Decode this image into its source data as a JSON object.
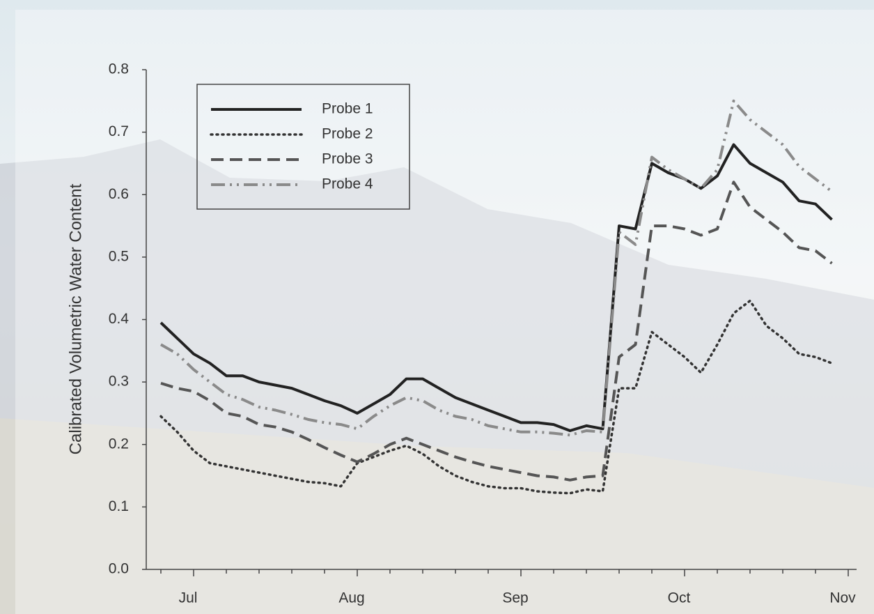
{
  "chart_data": {
    "type": "line",
    "ylabel": "Calibrated Volumetric Water Content",
    "categories": [
      null,
      null,
      "Jul",
      null,
      null,
      null,
      null,
      null,
      null,
      null,
      null,
      null,
      "Aug",
      null,
      null,
      null,
      null,
      null,
      null,
      null,
      null,
      null,
      "Sep",
      null,
      null,
      null,
      null,
      null,
      null,
      null,
      null,
      null,
      "Oct",
      null,
      null,
      null,
      null,
      null,
      null,
      null,
      null,
      null,
      "Nov"
    ],
    "series": [
      {
        "name": "Probe 1",
        "color": "#222222",
        "dash": "solid",
        "values": [
          0.395,
          0.37,
          0.345,
          0.33,
          0.31,
          0.31,
          0.3,
          0.295,
          0.29,
          0.28,
          0.27,
          0.262,
          0.25,
          0.265,
          0.28,
          0.305,
          0.305,
          0.29,
          0.275,
          0.265,
          0.255,
          0.245,
          0.235,
          0.235,
          0.232,
          0.222,
          0.23,
          0.225,
          0.55,
          0.545,
          0.65,
          0.635,
          0.625,
          0.61,
          0.63,
          0.68,
          0.65,
          0.635,
          0.62,
          0.59,
          0.585,
          0.56,
          null
        ]
      },
      {
        "name": "Probe 2",
        "color": "#333333",
        "dash": "dotted",
        "values": [
          0.245,
          0.22,
          0.19,
          0.17,
          0.165,
          0.16,
          0.155,
          0.15,
          0.145,
          0.14,
          0.138,
          0.133,
          0.17,
          0.18,
          0.19,
          0.198,
          0.185,
          0.165,
          0.15,
          0.14,
          0.133,
          0.13,
          0.13,
          0.125,
          0.123,
          0.122,
          0.128,
          0.125,
          0.29,
          0.29,
          0.38,
          0.36,
          0.34,
          0.315,
          0.36,
          0.41,
          0.43,
          0.39,
          0.37,
          0.345,
          0.34,
          0.33,
          null
        ]
      },
      {
        "name": "Probe 3",
        "color": "#555555",
        "dash": "dashed",
        "values": [
          0.298,
          0.29,
          0.285,
          0.27,
          0.25,
          0.245,
          0.232,
          0.228,
          0.22,
          0.208,
          0.195,
          0.183,
          0.172,
          0.185,
          0.2,
          0.21,
          0.2,
          0.19,
          0.18,
          0.172,
          0.165,
          0.16,
          0.155,
          0.15,
          0.148,
          0.143,
          0.148,
          0.15,
          0.34,
          0.36,
          0.55,
          0.55,
          0.545,
          0.535,
          0.545,
          0.62,
          0.58,
          0.56,
          0.54,
          0.515,
          0.51,
          0.49,
          null
        ]
      },
      {
        "name": "Probe 4",
        "color": "#8a8a8a",
        "dash": "dash-dot-dot",
        "values": [
          0.36,
          0.345,
          0.32,
          0.3,
          0.28,
          0.272,
          0.26,
          0.255,
          0.248,
          0.24,
          0.235,
          0.232,
          0.225,
          0.245,
          0.262,
          0.275,
          0.27,
          0.255,
          0.245,
          0.24,
          0.23,
          0.225,
          0.22,
          0.22,
          0.218,
          0.215,
          0.222,
          0.22,
          0.54,
          0.52,
          0.66,
          0.64,
          0.625,
          0.61,
          0.64,
          0.75,
          0.72,
          0.7,
          0.68,
          0.645,
          0.625,
          0.605,
          null
        ]
      }
    ],
    "ylim": [
      0,
      0.8
    ],
    "yticks": [
      {
        "value": 0,
        "label": "0.0"
      },
      0.1,
      0.2,
      0.3,
      0.4,
      0.5,
      0.6,
      0.7,
      0.8
    ],
    "grid": false,
    "legend": "upper left"
  }
}
